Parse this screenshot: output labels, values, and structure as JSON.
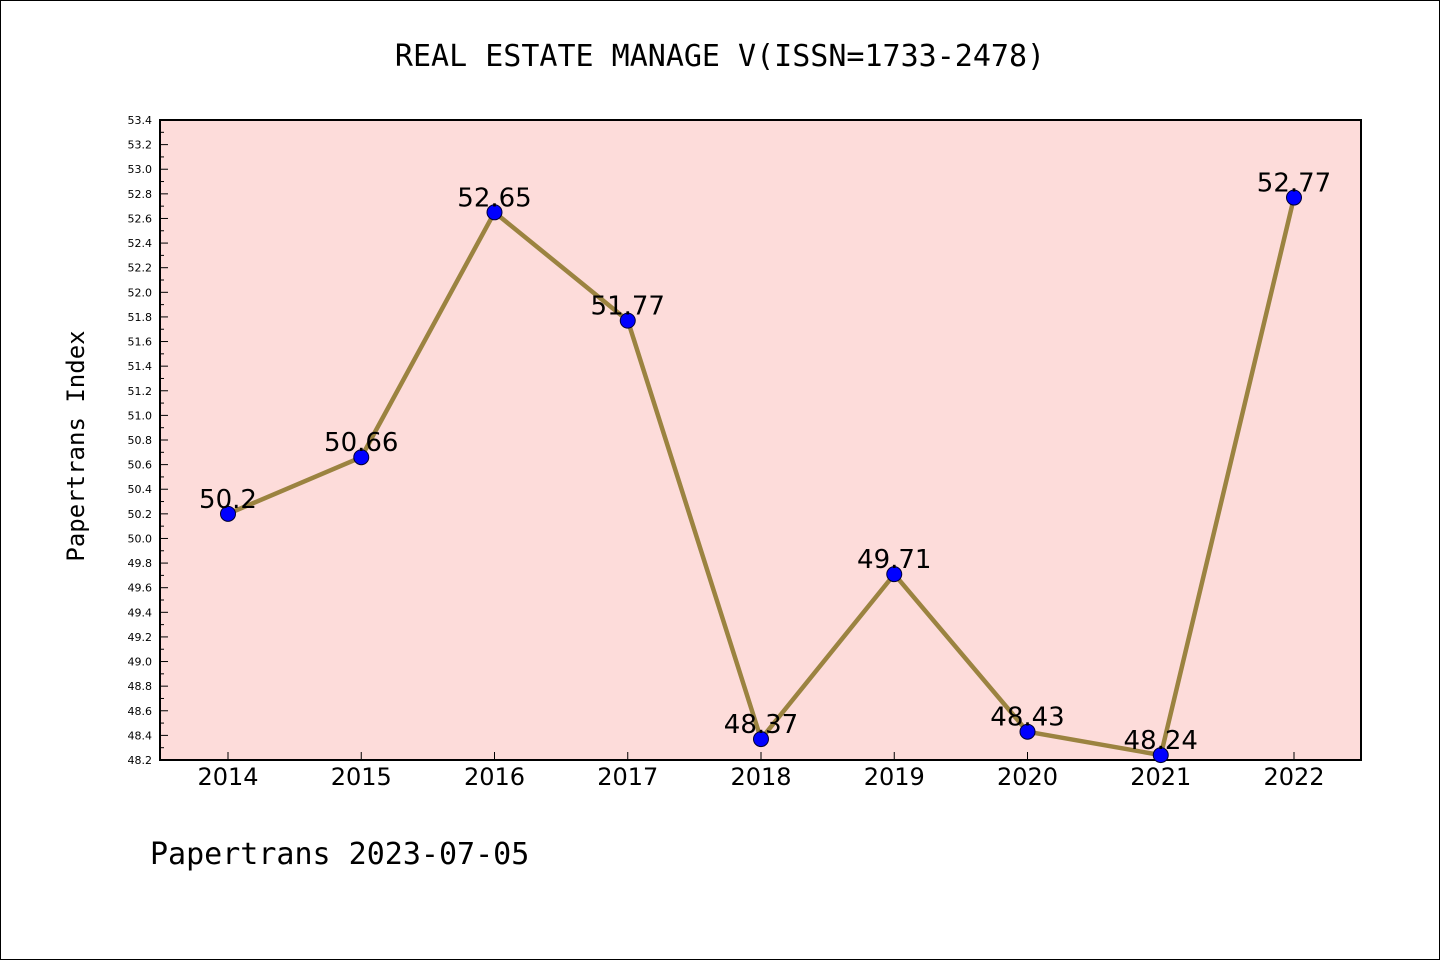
{
  "chart_data": {
    "type": "line",
    "title": "REAL ESTATE MANAGE V(ISSN=1733-2478)",
    "xlabel": "",
    "ylabel": "Papertrans Index",
    "footer": "Papertrans 2023-07-05",
    "categories": [
      "2014",
      "2015",
      "2016",
      "2017",
      "2018",
      "2019",
      "2020",
      "2021",
      "2022"
    ],
    "values": [
      50.2,
      50.66,
      52.65,
      51.77,
      48.37,
      49.71,
      48.43,
      48.24,
      52.77
    ],
    "data_labels": [
      "50.2",
      "50.66",
      "52.65",
      "51.77",
      "48.37",
      "49.71",
      "48.43",
      "48.24",
      "52.77"
    ],
    "ylim": [
      48.2,
      53.4
    ],
    "yticks": [
      "48.2",
      "48.4",
      "48.6",
      "48.8",
      "49.0",
      "49.2",
      "49.4",
      "49.6",
      "49.8",
      "50.0",
      "50.2",
      "50.4",
      "50.6",
      "50.8",
      "51.0",
      "51.2",
      "51.4",
      "51.6",
      "51.8",
      "52.0",
      "52.2",
      "52.4",
      "52.6",
      "52.8",
      "53.0",
      "53.2",
      "53.4"
    ],
    "grid": false,
    "colors": {
      "plot_background": "#FDDCDA",
      "line": "#9B8340",
      "marker": "#0000FF"
    }
  }
}
